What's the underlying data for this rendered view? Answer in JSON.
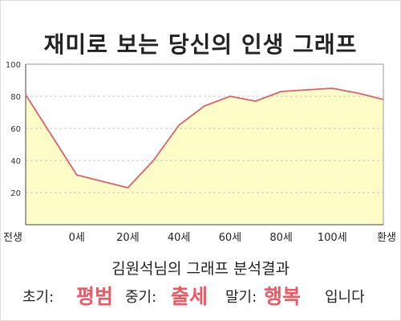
{
  "title": "재미로 보는 당신의 인생 그래프",
  "subtitle": "김원석님의 그래프 분석결과",
  "result": {
    "early_label": "초기:",
    "early_value": "평범",
    "middle_label": "중기:",
    "middle_value": "출세",
    "late_label": "말기:",
    "late_value": "행복",
    "ending": "입니다"
  },
  "colors": {
    "area_fill": "#fefdc8",
    "line": "#e0606a",
    "accent_text": "#ea5a66"
  },
  "chart_data": {
    "type": "area",
    "title": "재미로 보는 당신의 인생 그래프",
    "x_tick_labels": [
      "전생",
      "0세",
      "20세",
      "40세",
      "60세",
      "80세",
      "100세",
      "환생"
    ],
    "x_tick_positions": [
      -20,
      0,
      20,
      40,
      60,
      80,
      100,
      120
    ],
    "x": [
      -20,
      -10,
      0,
      10,
      20,
      30,
      40,
      50,
      60,
      70,
      80,
      90,
      100,
      110,
      120
    ],
    "values": [
      81,
      56,
      31,
      27,
      23,
      40,
      62,
      74,
      80,
      77,
      83,
      84,
      85,
      82,
      78
    ],
    "xlim": [
      -20,
      120
    ],
    "ylim": [
      0,
      100
    ],
    "y_ticks": [
      20,
      40,
      60,
      80,
      100
    ],
    "grid": "horizontal-dashed",
    "xlabel": "",
    "ylabel": ""
  }
}
